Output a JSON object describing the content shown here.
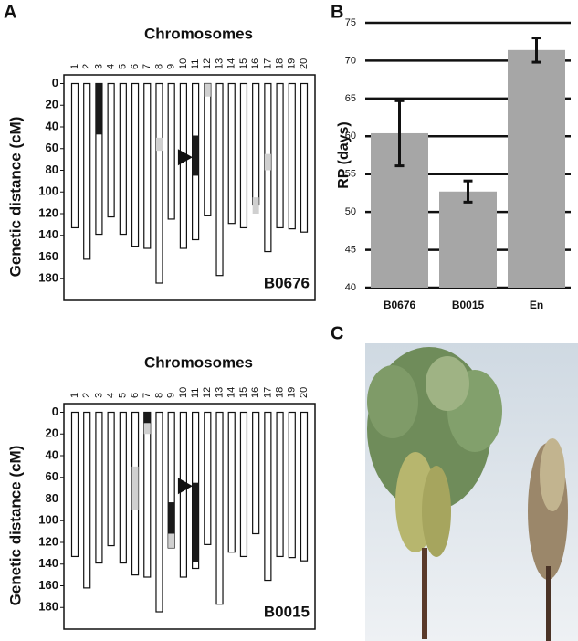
{
  "panel_labels": [
    "A",
    "B",
    "C"
  ],
  "chart_data": [
    {
      "type": "chromosome-map",
      "title": "Chromosomes",
      "y_label": "Genetic distance (cM)",
      "annotation": "B0676",
      "categories": [
        "1",
        "2",
        "3",
        "4",
        "5",
        "6",
        "7",
        "8",
        "9",
        "10",
        "11",
        "12",
        "13",
        "14",
        "15",
        "16",
        "17",
        "18",
        "19",
        "20"
      ],
      "values": [
        133,
        162,
        139,
        123,
        139,
        150,
        152,
        184,
        125,
        152,
        144,
        122,
        177,
        129,
        133,
        112,
        155,
        133,
        134,
        137
      ],
      "ylim": [
        -8,
        200
      ],
      "yticks": [
        0,
        20,
        40,
        60,
        80,
        100,
        120,
        140,
        160,
        180
      ],
      "segments": [
        {
          "chromosome": "3",
          "start": 0,
          "end": 47,
          "color": "#1a1a1a"
        },
        {
          "chromosome": "11",
          "start": 48,
          "end": 85,
          "color": "#1a1a1a"
        },
        {
          "chromosome": "8",
          "start": 50,
          "end": 62,
          "color": "#d0d0d0"
        },
        {
          "chromosome": "12",
          "start": 0,
          "end": 12,
          "color": "#d0d0d0"
        },
        {
          "chromosome": "16",
          "start": 105,
          "end": 120,
          "color": "#d0d0d0"
        },
        {
          "chromosome": "17",
          "start": 65,
          "end": 80,
          "color": "#d0d0d0"
        }
      ],
      "arrow_chromosome": "10",
      "arrow_position": 68
    },
    {
      "type": "chromosome-map",
      "title": "Chromosomes",
      "y_label": "Genetic distance (cM)",
      "annotation": "B0015",
      "categories": [
        "1",
        "2",
        "3",
        "4",
        "5",
        "6",
        "7",
        "8",
        "9",
        "10",
        "11",
        "12",
        "13",
        "14",
        "15",
        "16",
        "17",
        "18",
        "19",
        "20"
      ],
      "values": [
        133,
        162,
        139,
        123,
        139,
        150,
        152,
        184,
        125,
        152,
        144,
        122,
        177,
        129,
        133,
        112,
        155,
        133,
        134,
        137
      ],
      "ylim": [
        -8,
        200
      ],
      "yticks": [
        0,
        20,
        40,
        60,
        80,
        100,
        120,
        140,
        160,
        180
      ],
      "segments": [
        {
          "chromosome": "7",
          "start": 0,
          "end": 10,
          "color": "#1a1a1a"
        },
        {
          "chromosome": "9",
          "start": 83,
          "end": 112,
          "color": "#1a1a1a"
        },
        {
          "chromosome": "11",
          "start": 65,
          "end": 138,
          "color": "#1a1a1a"
        },
        {
          "chromosome": "7",
          "start": 10,
          "end": 20,
          "color": "#d0d0d0"
        },
        {
          "chromosome": "6",
          "start": 50,
          "end": 90,
          "color": "#d0d0d0"
        },
        {
          "chromosome": "9",
          "start": 112,
          "end": 125,
          "color": "#d0d0d0"
        }
      ],
      "arrow_chromosome": "10",
      "arrow_position": 68
    },
    {
      "type": "bar",
      "y_label": "RP (days)",
      "categories": [
        "B0676",
        "B0015",
        "En"
      ],
      "values": [
        60.4,
        52.7,
        71.4
      ],
      "errors": [
        4.3,
        1.4,
        1.6
      ],
      "color": "#a6a6a6",
      "ylim": [
        40,
        75
      ],
      "yticks": [
        40,
        45,
        50,
        55,
        60,
        65,
        70,
        75
      ],
      "grid": true
    }
  ]
}
